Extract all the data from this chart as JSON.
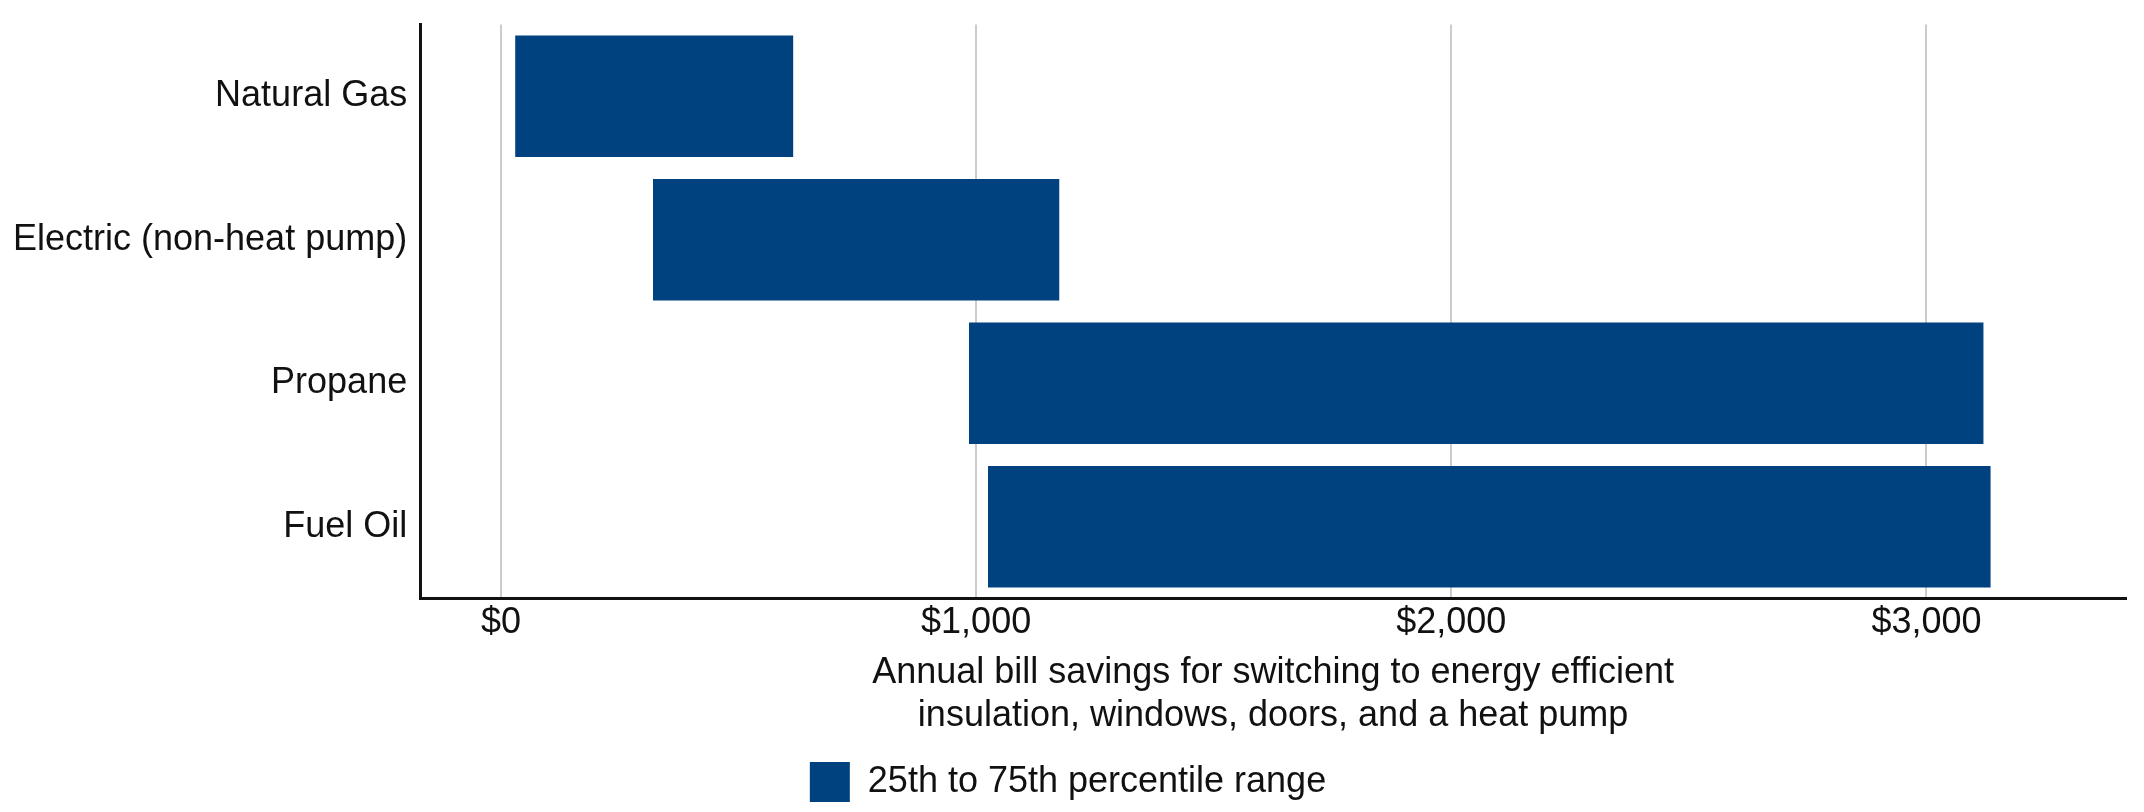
{
  "chart_data": {
    "type": "bar",
    "orientation": "horizontal",
    "categories": [
      "Natural Gas",
      "Electric (non-heat pump)",
      "Propane",
      "Fuel Oil"
    ],
    "series": [
      {
        "name": "25th to 75th percentile range",
        "color": "#00427f",
        "values": [
          585,
          855,
          2135,
          2110
        ],
        "base": [
          30,
          320,
          985,
          1025
        ]
      }
    ],
    "xlim": [
      -170,
      3420
    ],
    "xticks": [
      {
        "value": 0,
        "label": "$0"
      },
      {
        "value": 1000,
        "label": "$1,000"
      },
      {
        "value": 2000,
        "label": "$2,000"
      },
      {
        "value": 3000,
        "label": "$3,000"
      }
    ],
    "xlabel": "Annual bill savings for switching to energy efficient\ninsulation, windows, doors, and a heat pump",
    "grid": "x",
    "legend": "bottom"
  }
}
